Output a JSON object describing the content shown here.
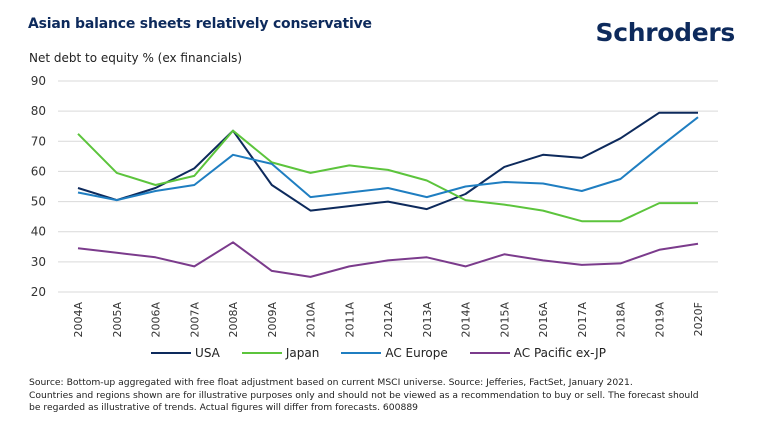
{
  "header": {
    "title": "Asian balance sheets relatively conservative",
    "logo": "Schroders"
  },
  "chart_data": {
    "type": "line",
    "title": "Asian balance sheets relatively conservative",
    "ylabel": "Net debt to equity % (ex financials)",
    "xlabel": "",
    "ylim": [
      20,
      90
    ],
    "yticks": [
      20,
      30,
      40,
      50,
      60,
      70,
      80,
      90
    ],
    "grid": true,
    "legend_position": "bottom",
    "categories": [
      "2004A",
      "2005A",
      "2006A",
      "2007A",
      "2008A",
      "2009A",
      "2010A",
      "2011A",
      "2012A",
      "2013A",
      "2014A",
      "2015A",
      "2016A",
      "2017A",
      "2018A",
      "2019A",
      "2020F"
    ],
    "series": [
      {
        "name": "USA",
        "color": "#0d2a5c",
        "values": [
          54.5,
          50.5,
          54.5,
          61,
          73.5,
          55.5,
          47,
          48.5,
          50,
          47.5,
          52.5,
          61.5,
          65.5,
          64.5,
          71,
          79.5,
          79.5
        ]
      },
      {
        "name": "Japan",
        "color": "#5cc43c",
        "values": [
          72.5,
          59.5,
          55.5,
          58.5,
          73.5,
          63,
          59.5,
          62,
          60.5,
          57,
          50.5,
          49,
          47,
          43.5,
          43.5,
          49.5,
          49.5
        ]
      },
      {
        "name": "AC Europe",
        "color": "#1f7ec1",
        "values": [
          53,
          50.5,
          53.5,
          55.5,
          65.5,
          62.5,
          51.5,
          53,
          54.5,
          51.5,
          55,
          56.5,
          56,
          53.5,
          57.5,
          68,
          78
        ]
      },
      {
        "name": "AC Pacific ex-JP",
        "color": "#7b3b8c",
        "values": [
          34.5,
          33,
          31.5,
          28.5,
          36.5,
          27,
          25,
          28.5,
          30.5,
          31.5,
          28.5,
          32.5,
          30.5,
          29,
          29.5,
          34,
          36
        ]
      }
    ]
  },
  "footnote": {
    "line1": "Source: Bottom-up aggregated with free float adjustment based on current MSCI universe. Source: Jefferies, FactSet, January 2021.",
    "line2": "Countries and regions shown are for illustrative purposes only and should not be viewed as a recommendation to buy or sell. The forecast should",
    "line3": "be regarded as illustrative of trends. Actual figures will differ from forecasts. 600889"
  }
}
